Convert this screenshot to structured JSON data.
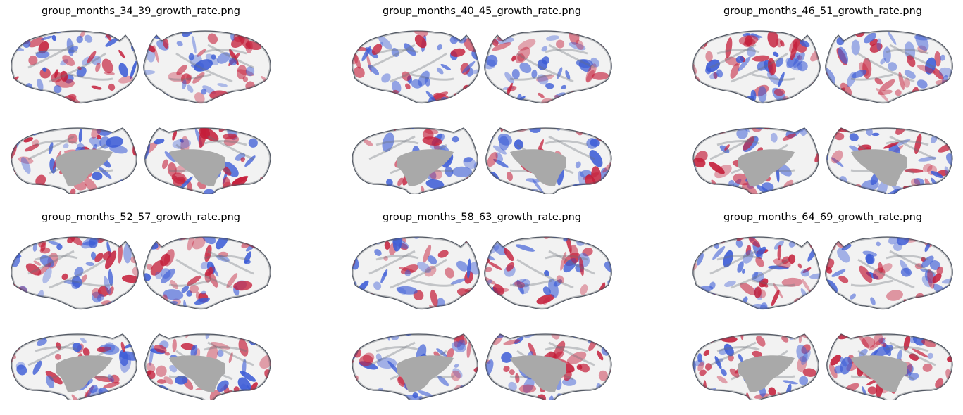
{
  "figure": {
    "panels": [
      {
        "title": "group_months_34_39_growth_rate.png",
        "seed": 1
      },
      {
        "title": "group_months_40_45_growth_rate.png",
        "seed": 2
      },
      {
        "title": "group_months_46_51_growth_rate.png",
        "seed": 3
      },
      {
        "title": "group_months_52_57_growth_rate.png",
        "seed": 4
      },
      {
        "title": "group_months_58_63_growth_rate.png",
        "seed": 5
      },
      {
        "title": "group_months_64_69_growth_rate.png",
        "seed": 6
      }
    ],
    "colormap": {
      "high": "#c41e3a",
      "mid": "#f2f2f2",
      "low": "#3b5bd6",
      "medial_wall": "#a9a9a9",
      "edge": "#555b66"
    }
  }
}
